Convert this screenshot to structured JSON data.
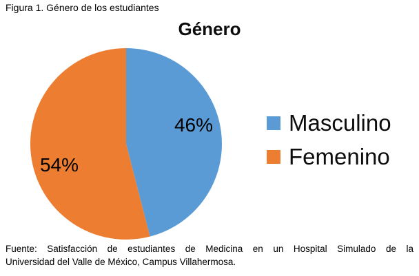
{
  "figure_caption": "Figura 1. Género de los estudiantes",
  "chart_data": {
    "type": "pie",
    "title": "Género",
    "categories": [
      "Masculino",
      "Femenino"
    ],
    "values": [
      46,
      54
    ],
    "series": [
      {
        "name": "Masculino",
        "value": 46,
        "label": "46%",
        "color": "#5B9BD5"
      },
      {
        "name": "Femenino",
        "value": 54,
        "label": "54%",
        "color": "#ED7D31"
      }
    ],
    "legend_position": "right",
    "start_angle_deg": 0,
    "direction": "clockwise",
    "data_labels": "inside"
  },
  "source": {
    "line1": "Fuente: Satisfacción de estudiantes de Medicina en un Hospital Simulado de la",
    "line2": "Universidad del Valle de México, Campus Villahermosa."
  }
}
